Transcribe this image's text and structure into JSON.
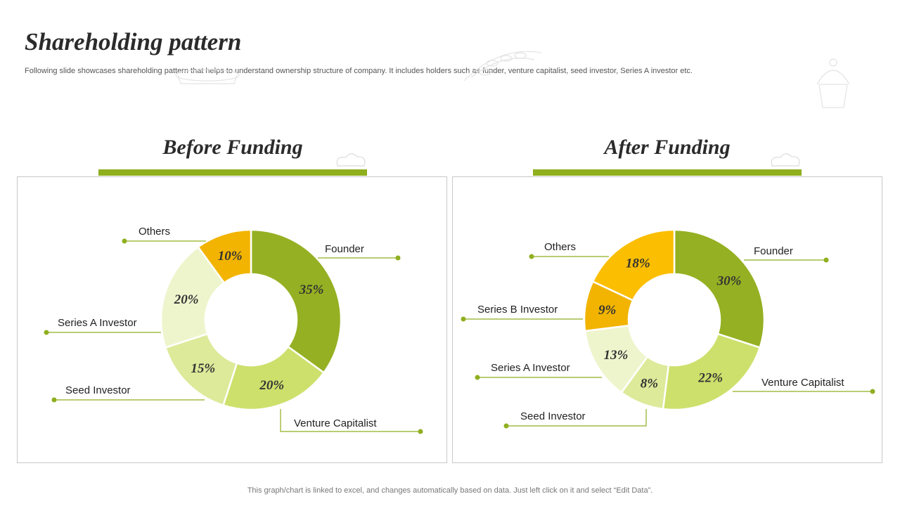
{
  "page": {
    "title": "Shareholding pattern",
    "subtitle": "Following slide showcases shareholding pattern that helps to understand ownership structure of company. It includes holders such as funder, venture capitalist, seed investor, Series A investor etc.",
    "footer": "This graph/chart is linked to excel,  and changes automatically based on data. Just left click on it and select “Edit Data”."
  },
  "colors": {
    "accent_bar": "#8faf1f",
    "leader_line": "#8faf1f",
    "label_text": "#222222",
    "value_text": "#333333"
  },
  "chart_data": [
    {
      "type": "pie",
      "title": "Before Funding",
      "donut": true,
      "slices": [
        {
          "label": "Founder",
          "value": 35,
          "display": "35%",
          "color": "#95b022"
        },
        {
          "label": "Venture  Capitalist",
          "value": 20,
          "display": "20%",
          "color": "#cde06c"
        },
        {
          "label": "Seed Investor",
          "value": 15,
          "display": "15%",
          "color": "#dcea9a"
        },
        {
          "label": "Series A Investor",
          "value": 20,
          "display": "20%",
          "color": "#eef5cd"
        },
        {
          "label": "Others",
          "value": 10,
          "display": "10%",
          "color": "#f2b400"
        }
      ]
    },
    {
      "type": "pie",
      "title": "After Funding",
      "donut": true,
      "slices": [
        {
          "label": "Founder",
          "value": 30,
          "display": "30%",
          "color": "#95b022"
        },
        {
          "label": "Venture Capitalist",
          "value": 22,
          "display": "22%",
          "color": "#cde06c"
        },
        {
          "label": "Seed Investor",
          "value": 8,
          "display": "8%",
          "color": "#dcea9a"
        },
        {
          "label": "Series A Investor",
          "value": 13,
          "display": "13%",
          "color": "#eef5cd"
        },
        {
          "label": "Series B Investor",
          "value": 9,
          "display": "9%",
          "color": "#f2b400"
        },
        {
          "label": "Others",
          "value": 18,
          "display": "18%",
          "color": "#fbbe00"
        }
      ]
    }
  ]
}
